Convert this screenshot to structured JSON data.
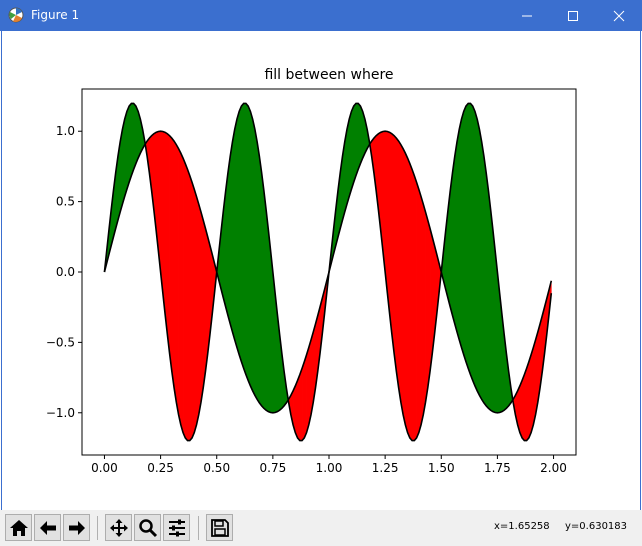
{
  "window": {
    "title": "Figure 1",
    "minimize_icon": "minimize-icon",
    "maximize_icon": "maximize-icon",
    "close_icon": "close-icon"
  },
  "toolbar": {
    "buttons": [
      {
        "name": "home",
        "icon": "home-icon"
      },
      {
        "name": "back",
        "icon": "arrow-left-icon"
      },
      {
        "name": "forward",
        "icon": "arrow-right-icon"
      },
      {
        "name": "pan",
        "icon": "move-icon"
      },
      {
        "name": "zoom",
        "icon": "zoom-icon"
      },
      {
        "name": "subplots",
        "icon": "sliders-icon"
      },
      {
        "name": "save",
        "icon": "save-icon"
      }
    ],
    "coords": {
      "x": "x=1.65258",
      "y": "y=0.630183"
    }
  },
  "chart_data": {
    "type": "area",
    "title": "fill between where",
    "xlabel": "",
    "ylabel": "",
    "xlim": [
      -0.1,
      2.1
    ],
    "ylim": [
      -1.3,
      1.3
    ],
    "xticks": [
      "0.00",
      "0.25",
      "0.50",
      "0.75",
      "1.00",
      "1.25",
      "1.50",
      "1.75",
      "2.00"
    ],
    "yticks": [
      "−1.0",
      "−0.5",
      "0.0",
      "0.5",
      "1.0"
    ],
    "x_range": [
      0.0,
      2.0
    ],
    "x_step": 0.01,
    "series": [
      {
        "formula": "sin(2*pi*x)",
        "amplitude": 1.0,
        "frequency": 1
      },
      {
        "formula": "1.2*sin(4*pi*x)",
        "amplitude": 1.2,
        "frequency": 2
      }
    ],
    "fill_where_second_greater_color": "#008000",
    "fill_where_first_greater_color": "#ff0000",
    "line_color": "#000000"
  }
}
